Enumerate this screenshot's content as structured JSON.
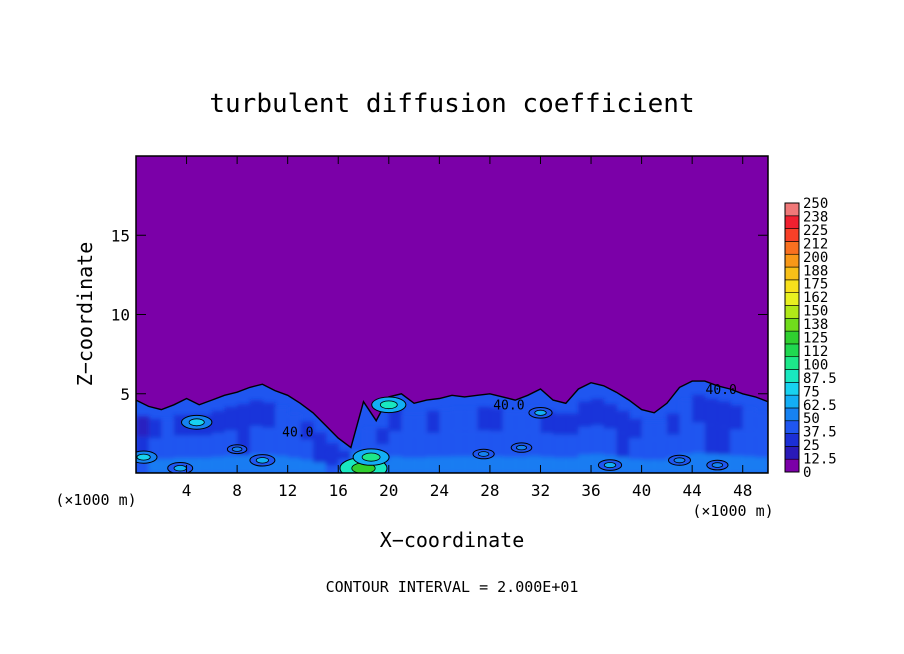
{
  "chart_data": {
    "type": "heatmap",
    "title": "turbulent diffusion coefficient",
    "xlabel": "X−coordinate",
    "ylabel": "Z−coordinate",
    "x_unit_left": "(×1000 m)",
    "x_unit_right": "(×1000 m)",
    "footer": "CONTOUR INTERVAL = 2.000E+01",
    "xlim": [
      0,
      50
    ],
    "ylim": [
      0,
      20
    ],
    "x_ticks": [
      4,
      8,
      12,
      16,
      20,
      24,
      28,
      32,
      36,
      40,
      44,
      48
    ],
    "y_ticks": [
      5,
      10,
      15
    ],
    "background_value": 0,
    "background_color": "#7b00a8",
    "colorbar": {
      "levels": [
        0,
        12.5,
        25,
        37.5,
        50,
        62.5,
        75,
        87.5,
        100,
        112,
        125,
        138,
        150,
        162,
        175,
        188,
        200,
        212,
        225,
        238,
        250
      ],
      "labels": [
        "0",
        "12.5",
        "25",
        "37.5",
        "50",
        "62.5",
        "75",
        "87.5",
        "100",
        "112",
        "125",
        "138",
        "150",
        "162",
        "175",
        "188",
        "200",
        "212",
        "225",
        "238",
        "250"
      ],
      "colors": [
        "#7b00a8",
        "#2a1ab8",
        "#1b2fd6",
        "#1f56f0",
        "#1682f2",
        "#13aef5",
        "#18d2f0",
        "#19e8c0",
        "#1de88a",
        "#20d850",
        "#30d030",
        "#70dc1c",
        "#b0e818",
        "#e8f020",
        "#f8e01c",
        "#f8c018",
        "#f89818",
        "#f87020",
        "#f84028",
        "#f02030",
        "#f07878"
      ]
    },
    "contour_labels": [
      {
        "x": 12.8,
        "z": 2.3,
        "text": "40.0"
      },
      {
        "x": 29.5,
        "z": 4.0,
        "text": "40.0"
      },
      {
        "x": 46.3,
        "z": 5.0,
        "text": "40.0"
      }
    ],
    "profile": {
      "x": [
        0,
        1,
        2,
        3,
        4,
        5,
        6,
        7,
        8,
        9,
        10,
        11,
        12,
        13,
        14,
        15,
        16,
        17,
        18,
        19,
        20,
        21,
        22,
        23,
        24,
        25,
        26,
        27,
        28,
        29,
        30,
        31,
        32,
        33,
        34,
        35,
        36,
        37,
        38,
        39,
        40,
        41,
        42,
        43,
        44,
        45,
        46,
        47,
        48,
        49,
        50
      ],
      "top_z": [
        4.6,
        4.2,
        4.0,
        4.3,
        4.7,
        4.3,
        4.6,
        4.9,
        5.1,
        5.4,
        5.6,
        5.2,
        4.9,
        4.4,
        3.8,
        3.0,
        2.2,
        1.6,
        4.5,
        3.3,
        4.8,
        5.0,
        4.4,
        4.6,
        4.7,
        4.9,
        4.8,
        4.9,
        5.0,
        4.8,
        4.6,
        4.9,
        5.3,
        4.6,
        4.4,
        5.3,
        5.7,
        5.5,
        5.1,
        4.6,
        4.0,
        3.8,
        4.4,
        5.4,
        5.8,
        5.8,
        5.5,
        5.3,
        5.0,
        4.8,
        4.5
      ],
      "mean_value": [
        30,
        40,
        48,
        40,
        38,
        40,
        40,
        38,
        36,
        38,
        40,
        48,
        45,
        40,
        36,
        34,
        38,
        60,
        45,
        38,
        42,
        48,
        44,
        40,
        44,
        48,
        44,
        40,
        40,
        44,
        48,
        44,
        42,
        40,
        40,
        40,
        42,
        38,
        36,
        40,
        44,
        46,
        42,
        44,
        40,
        36,
        36,
        40,
        44,
        44,
        42
      ]
    },
    "hotspots": [
      {
        "x": 18.0,
        "z": 0.3,
        "value": 130
      },
      {
        "x": 18.6,
        "z": 1.0,
        "value": 100
      },
      {
        "x": 20.0,
        "z": 4.3,
        "value": 95
      },
      {
        "x": 4.8,
        "z": 3.2,
        "value": 85
      },
      {
        "x": 0.6,
        "z": 1.0,
        "value": 75
      },
      {
        "x": 3.5,
        "z": 0.3,
        "value": 70
      },
      {
        "x": 10.0,
        "z": 0.8,
        "value": 70
      },
      {
        "x": 32.0,
        "z": 3.8,
        "value": 65
      },
      {
        "x": 37.5,
        "z": 0.5,
        "value": 65
      },
      {
        "x": 43.0,
        "z": 0.8,
        "value": 62
      },
      {
        "x": 27.5,
        "z": 1.2,
        "value": 60
      },
      {
        "x": 46.0,
        "z": 0.5,
        "value": 60
      },
      {
        "x": 30.5,
        "z": 1.6,
        "value": 58
      },
      {
        "x": 8.0,
        "z": 1.5,
        "value": 55
      }
    ],
    "grid": false
  }
}
